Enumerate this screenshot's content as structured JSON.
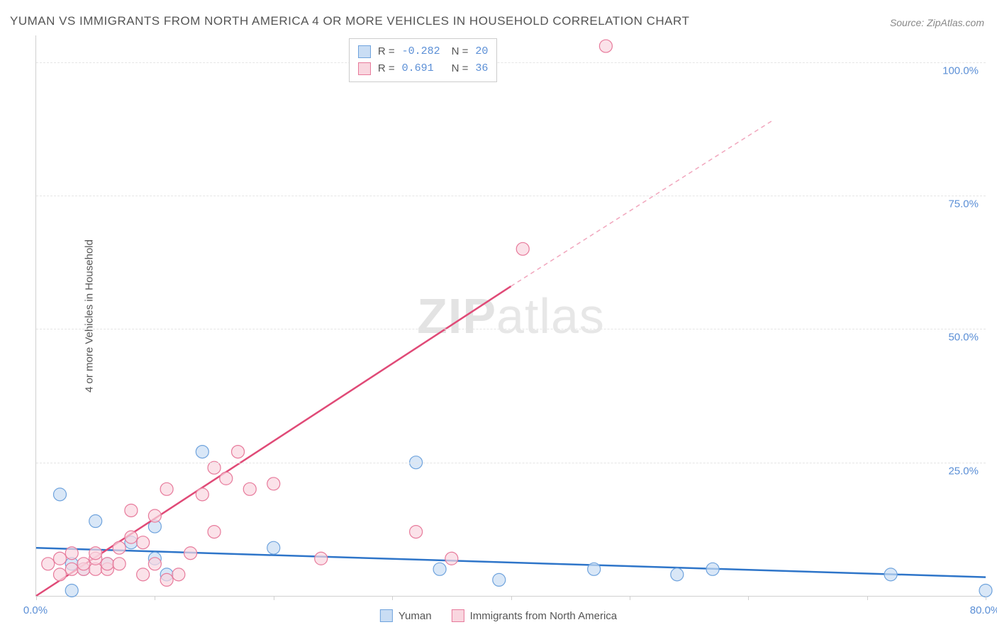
{
  "title": "YUMAN VS IMMIGRANTS FROM NORTH AMERICA 4 OR MORE VEHICLES IN HOUSEHOLD CORRELATION CHART",
  "source": "Source: ZipAtlas.com",
  "watermark_zip": "ZIP",
  "watermark_atlas": "atlas",
  "chart": {
    "type": "scatter-with-regression",
    "y_label": "4 or more Vehicles in Household",
    "xlim": [
      0,
      80
    ],
    "ylim": [
      0,
      105
    ],
    "x_ticks": [
      0,
      10,
      20,
      30,
      40,
      50,
      60,
      70,
      80
    ],
    "x_tick_labels": {
      "0": "0.0%",
      "80": "80.0%"
    },
    "y_ticks": [
      25,
      50,
      75,
      100
    ],
    "y_tick_labels": {
      "25": "25.0%",
      "50": "50.0%",
      "75": "75.0%",
      "100": "100.0%"
    },
    "grid_color": "#e5e5e5",
    "background_color": "#ffffff",
    "axis_color": "#d0d0d0",
    "tick_label_color": "#5b8fd6",
    "series": [
      {
        "id": "yuman",
        "label": "Yuman",
        "color_fill": "#c9ddf4",
        "color_stroke": "#6fa3dd",
        "marker_radius": 9,
        "R": -0.282,
        "N": 20,
        "regression": {
          "x1": 0,
          "y1": 9,
          "x2": 80,
          "y2": 3.5,
          "color": "#2e75c9",
          "width": 2.5,
          "dash": "none"
        },
        "points": [
          [
            2,
            19
          ],
          [
            3,
            1
          ],
          [
            3,
            6
          ],
          [
            4,
            5
          ],
          [
            5,
            14
          ],
          [
            6,
            6
          ],
          [
            8,
            10
          ],
          [
            10,
            7
          ],
          [
            10,
            13
          ],
          [
            11,
            4
          ],
          [
            14,
            27
          ],
          [
            20,
            9
          ],
          [
            32,
            25
          ],
          [
            34,
            5
          ],
          [
            39,
            3
          ],
          [
            47,
            5
          ],
          [
            54,
            4
          ],
          [
            57,
            5
          ],
          [
            72,
            4
          ],
          [
            80,
            1
          ]
        ]
      },
      {
        "id": "immigrants",
        "label": "Immigrants from North America",
        "color_fill": "#f9d6df",
        "color_stroke": "#e77a9b",
        "marker_radius": 9,
        "R": 0.691,
        "N": 36,
        "regression_solid": {
          "x1": 0,
          "y1": 0,
          "x2": 40,
          "y2": 58,
          "color": "#e04a77",
          "width": 2.5
        },
        "regression_dashed": {
          "x1": 40,
          "y1": 58,
          "x2": 62,
          "y2": 89,
          "color": "#f1a6bd",
          "width": 1.5,
          "dash": "6,5"
        },
        "points": [
          [
            1,
            6
          ],
          [
            2,
            4
          ],
          [
            2,
            7
          ],
          [
            3,
            5
          ],
          [
            3,
            8
          ],
          [
            4,
            5
          ],
          [
            4,
            6
          ],
          [
            5,
            5
          ],
          [
            5,
            7
          ],
          [
            5,
            8
          ],
          [
            6,
            5
          ],
          [
            6,
            6
          ],
          [
            7,
            6
          ],
          [
            7,
            9
          ],
          [
            8,
            11
          ],
          [
            8,
            16
          ],
          [
            9,
            4
          ],
          [
            9,
            10
          ],
          [
            10,
            6
          ],
          [
            10,
            15
          ],
          [
            11,
            3
          ],
          [
            11,
            20
          ],
          [
            12,
            4
          ],
          [
            13,
            8
          ],
          [
            14,
            19
          ],
          [
            15,
            12
          ],
          [
            15,
            24
          ],
          [
            16,
            22
          ],
          [
            17,
            27
          ],
          [
            18,
            20
          ],
          [
            20,
            21
          ],
          [
            24,
            7
          ],
          [
            32,
            12
          ],
          [
            35,
            7
          ],
          [
            41,
            65
          ],
          [
            48,
            103
          ]
        ]
      }
    ]
  },
  "legend_top": {
    "rows": [
      {
        "swatch_fill": "#c9ddf4",
        "swatch_stroke": "#6fa3dd",
        "R_label": "R =",
        "R_val": "-0.282",
        "N_label": "N =",
        "N_val": "20"
      },
      {
        "swatch_fill": "#f9d6df",
        "swatch_stroke": "#e77a9b",
        "R_label": "R =",
        "R_val": " 0.691",
        "N_label": "N =",
        "N_val": "36"
      }
    ]
  },
  "legend_bottom": {
    "items": [
      {
        "swatch_fill": "#c9ddf4",
        "swatch_stroke": "#6fa3dd",
        "label": "Yuman"
      },
      {
        "swatch_fill": "#f9d6df",
        "swatch_stroke": "#e77a9b",
        "label": "Immigrants from North America"
      }
    ]
  }
}
